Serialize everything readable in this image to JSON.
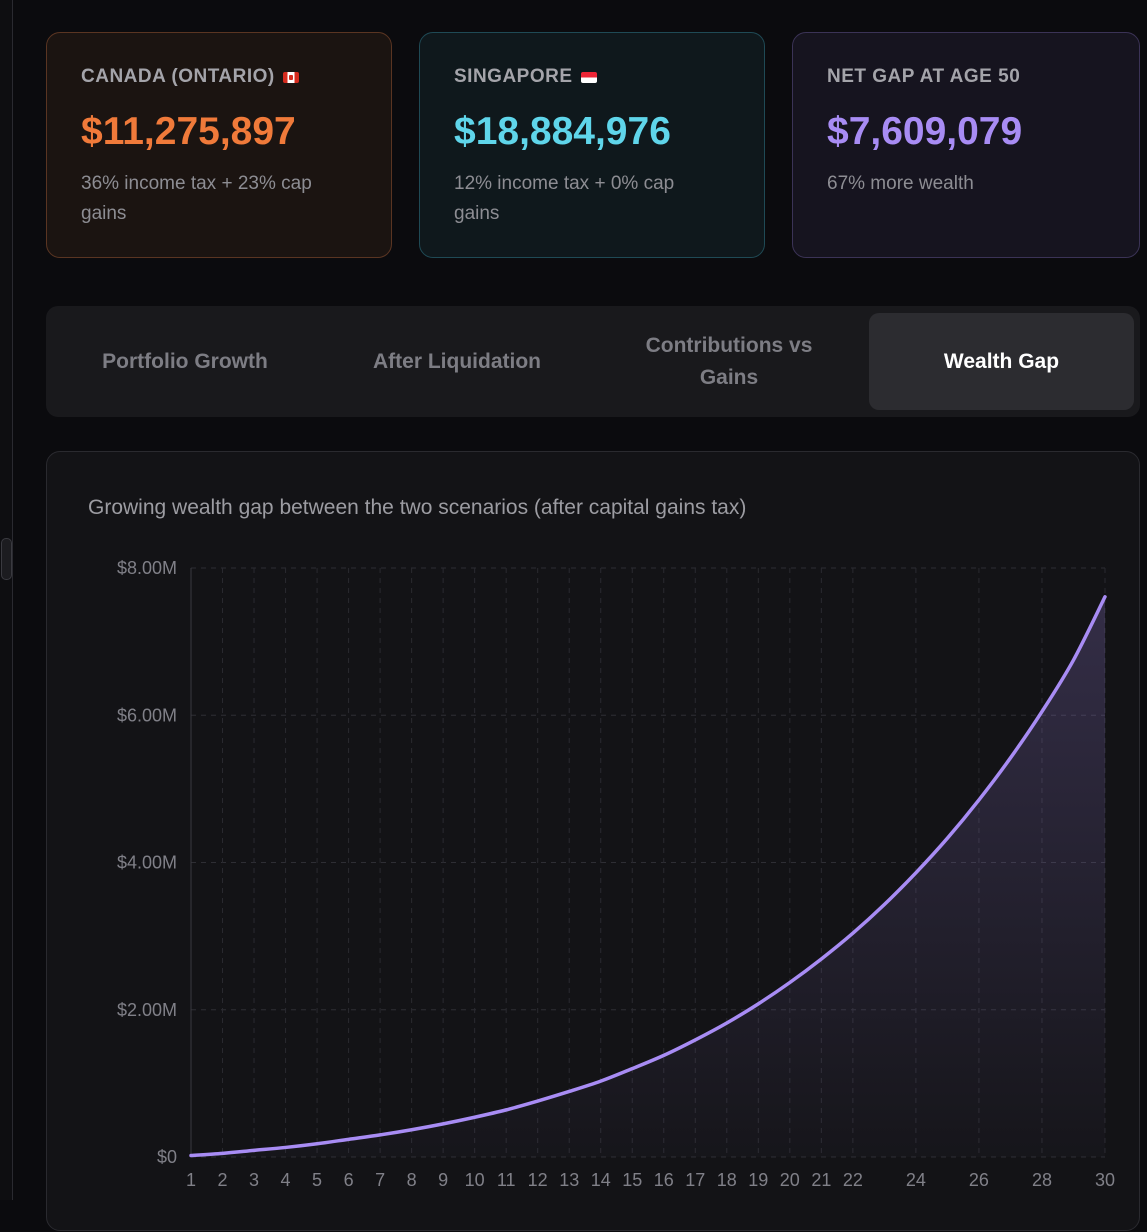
{
  "cards": [
    {
      "title": "CANADA (ONTARIO)",
      "flag": "canada-flag",
      "amount": "$11,275,897",
      "description": "36% income tax + 23% cap gains",
      "accent": "#f07a3a"
    },
    {
      "title": "SINGAPORE",
      "flag": "singapore-flag",
      "amount": "$18,884,976",
      "description": "12% income tax + 0% cap gains",
      "accent": "#5fd5ea"
    },
    {
      "title": "NET GAP AT AGE 50",
      "amount": "$7,609,079",
      "description": "67% more wealth",
      "accent": "#a88cf4"
    }
  ],
  "tabs": [
    {
      "label": "Portfolio Growth",
      "active": false
    },
    {
      "label": "After Liquidation",
      "active": false
    },
    {
      "label": "Contributions vs Gains",
      "active": false
    },
    {
      "label": "Wealth Gap",
      "active": true
    }
  ],
  "chart": {
    "caption": "Growing wealth gap between the two scenarios (after capital gains tax)"
  },
  "chart_data": {
    "type": "area",
    "title": "Growing wealth gap between the two scenarios (after capital gains tax)",
    "xlabel": "",
    "ylabel": "",
    "ylim": [
      0,
      8000000
    ],
    "yticks": [
      0,
      2000000,
      4000000,
      6000000,
      8000000
    ],
    "ytick_labels": [
      "$0",
      "$2.00M",
      "$4.00M",
      "$6.00M",
      "$8.00M"
    ],
    "x": [
      1,
      2,
      3,
      4,
      5,
      6,
      7,
      8,
      9,
      10,
      11,
      12,
      13,
      14,
      15,
      16,
      17,
      18,
      19,
      20,
      21,
      22,
      23,
      24,
      25,
      26,
      27,
      28,
      29,
      30
    ],
    "xtick_labels": [
      "1",
      "2",
      "3",
      "4",
      "5",
      "6",
      "7",
      "8",
      "9",
      "10",
      "11",
      "12",
      "13",
      "14",
      "15",
      "16",
      "17",
      "18",
      "19",
      "20",
      "21",
      "22",
      "24",
      "26",
      "28",
      "30"
    ],
    "series": [
      {
        "name": "Wealth Gap",
        "color": "#a88cf4",
        "values": [
          20000,
          50000,
          90000,
          130000,
          180000,
          240000,
          300000,
          370000,
          450000,
          540000,
          640000,
          760000,
          890000,
          1030000,
          1200000,
          1380000,
          1590000,
          1820000,
          2080000,
          2370000,
          2690000,
          3040000,
          3430000,
          3860000,
          4330000,
          4850000,
          5420000,
          6050000,
          6750000,
          7609079
        ]
      }
    ],
    "grid": true
  }
}
